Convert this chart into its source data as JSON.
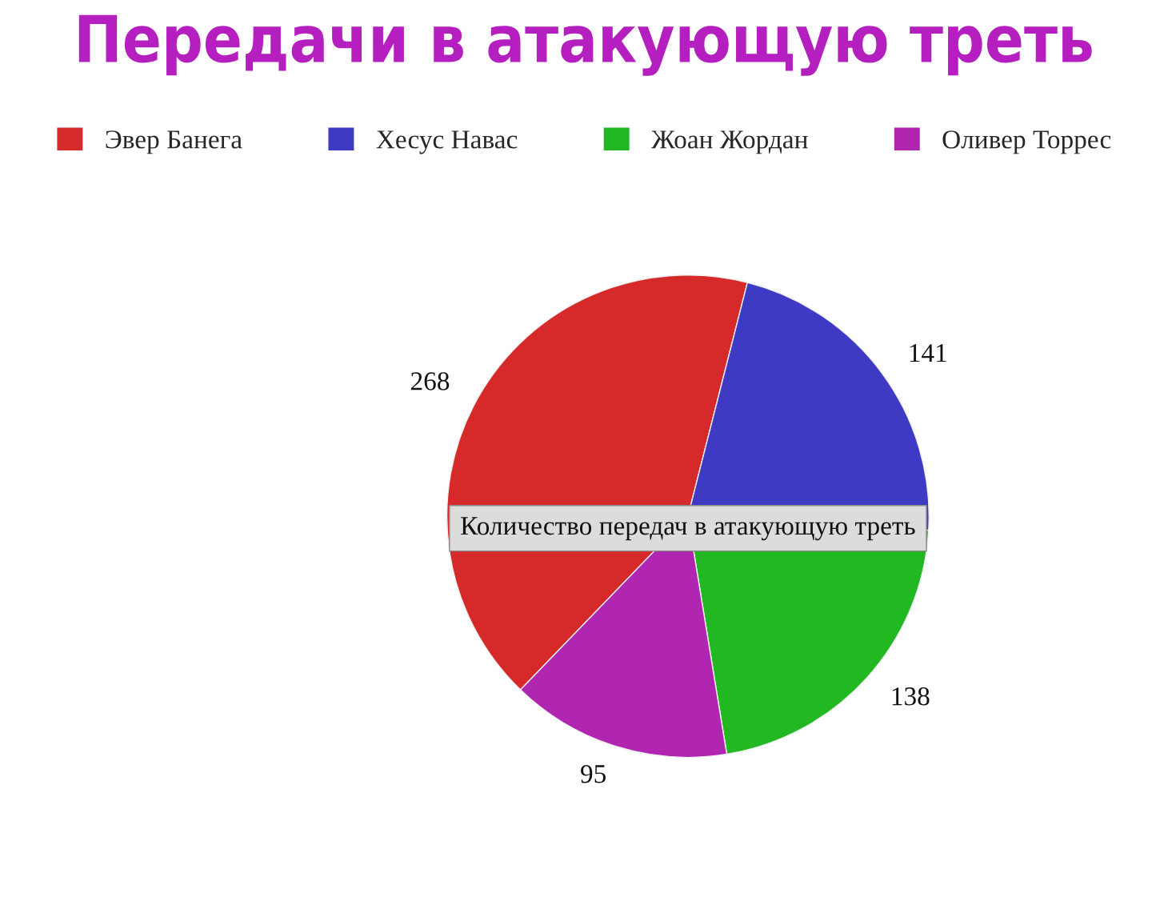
{
  "chart_data": {
    "type": "pie",
    "title": "Передачи в атакующую треть",
    "categories": [
      "Эвер Банега",
      "Хесус Навас",
      "Жоан Жордан",
      "Оливер Торрес"
    ],
    "values": [
      268,
      141,
      138,
      95
    ],
    "colors": [
      "#d62a2a",
      "#3f3ac4",
      "#22b822",
      "#b026b0"
    ],
    "data_labels": true,
    "legend": "top",
    "annotations": [
      "Количество передач в атакующую треть"
    ]
  }
}
